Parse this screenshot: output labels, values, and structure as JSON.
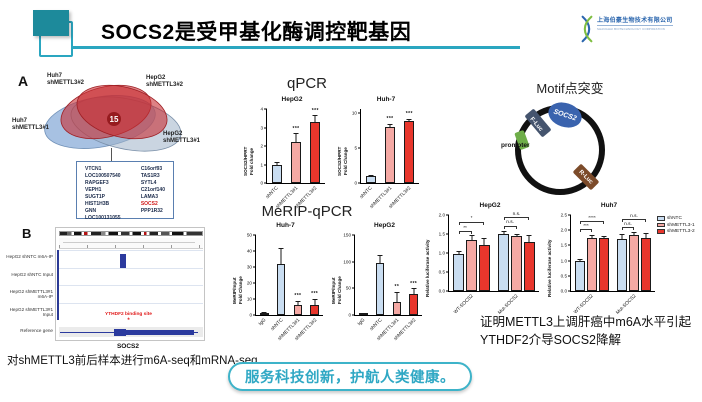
{
  "header": {
    "title": "SOCS2是受甲基化酶调控靶基因",
    "logo": {
      "cn": "上海伯豪生物技术有限公司",
      "en": "SHANGHAI BIOTECHNOLOGY CORPORATION"
    }
  },
  "panelA": {
    "label": "A",
    "venn": {
      "center_count": "15",
      "sets": [
        "Huh7\nshMETTL3#2",
        "HepG2\nshMETTL3#2",
        "Huh7\nshMETTL3#1",
        "HepG2\nshMETTL3#1"
      ]
    },
    "genes": {
      "col1": [
        "VTCN1",
        "LOC100507540",
        "RAPGEF3",
        "VEPH1",
        "SUGT1P",
        "HIST1H3B",
        "GNN",
        "LOC100131055"
      ],
      "col2": [
        "C16orf93",
        "TAS1R3",
        "SYTL4",
        "C21orf140",
        "LAMA3",
        "SOCS2",
        "PPP1R32"
      ],
      "highlight": "SOCS2"
    }
  },
  "panelB": {
    "label": "B",
    "tracks": [
      "HepG2 shNTC m6A-IP",
      "HepG2 shNTC Input",
      "HepG2 shMETTL3#1 m6A-IP",
      "HepG2 shMETTL3#1 Input",
      "Reference gene"
    ],
    "annotation": "YTHDF2 binding site",
    "annotation_mark": "*",
    "gene_label": "SOCS2"
  },
  "sections": {
    "qpcr": "qPCR",
    "merip": "MeRIP-qPCR",
    "motif": "Motif点突变"
  },
  "plasmid": {
    "insert": "SOCS2",
    "fluc": "F-Luc",
    "promoter": "promoter",
    "rluc": "R-Luc"
  },
  "legend": [
    {
      "label": "shNTC",
      "color": "blue"
    },
    {
      "label": "shMETTL3-1",
      "color": "pink"
    },
    {
      "label": "shMETTL3-2",
      "color": "red"
    }
  ],
  "conclusion": "证明METTL3上调肝癌中m6A水平引起YTHDF2介导SOCS2降解",
  "bottom_left_note": "对shMETTL3前后样本进行m6A-seq和mRNA-seq",
  "slogan": "服务科技创新，护航人类健康。",
  "palette": {
    "blue": "#C9DDF1",
    "pink": "#F5A9A4",
    "red": "#E8362C",
    "dark": "#1b1b2e",
    "teal": "#2AA6C0",
    "tealDark": "#1D8A9B"
  },
  "chart_data": [
    {
      "id": "qpcr_hepg2",
      "type": "bar",
      "title": "HepG2",
      "ylabel": "SOCS2/HPRT\nFold change",
      "ymax": 4,
      "yticks": [
        0,
        1,
        2,
        3,
        4
      ],
      "bars": [
        {
          "label": "shNTC",
          "value": 1.0,
          "err": 0.15,
          "color": "blue",
          "sig": ""
        },
        {
          "label": "shMETTL3#1",
          "value": 2.2,
          "err": 0.5,
          "color": "pink",
          "sig": "***"
        },
        {
          "label": "shMETTL3#2",
          "value": 3.3,
          "err": 0.35,
          "color": "red",
          "sig": "***"
        }
      ]
    },
    {
      "id": "qpcr_huh7",
      "type": "bar",
      "title": "Huh-7",
      "ylabel": "SOCS2/HPRT\nFold Change",
      "ymax": 10.5,
      "yticks": [
        0,
        5,
        10
      ],
      "bars": [
        {
          "label": "shNTC",
          "value": 1.0,
          "err": 0.1,
          "color": "blue",
          "sig": ""
        },
        {
          "label": "shMETTL3#1",
          "value": 8.0,
          "err": 0.4,
          "color": "pink",
          "sig": "***"
        },
        {
          "label": "shMETTL3#2",
          "value": 8.8,
          "err": 0.35,
          "color": "red",
          "sig": "***"
        }
      ]
    },
    {
      "id": "merip_huh7",
      "type": "bar",
      "title": "Huh-7",
      "ylabel": "MeRIP/Input\nFold Change",
      "ymax": 50,
      "yticks": [
        0,
        10,
        20,
        30,
        40,
        50
      ],
      "bars": [
        {
          "label": "IgG",
          "value": 1.2,
          "err": 0.4,
          "color": "dark",
          "sig": ""
        },
        {
          "label": "shNTC",
          "value": 32,
          "err": 10,
          "color": "blue",
          "sig": ""
        },
        {
          "label": "shMETTL3#1",
          "value": 6,
          "err": 3,
          "color": "pink",
          "sig": "***"
        },
        {
          "label": "shMETTL3#2",
          "value": 6,
          "err": 4,
          "color": "red",
          "sig": "***"
        }
      ]
    },
    {
      "id": "merip_hepg2",
      "type": "bar",
      "title": "HepG2",
      "ylabel": "MeRIP/Input\nFold Change",
      "ymax": 150,
      "yticks": [
        0,
        50,
        100,
        150
      ],
      "bars": [
        {
          "label": "IgG",
          "value": 3,
          "err": 1,
          "color": "dark",
          "sig": ""
        },
        {
          "label": "shNTC",
          "value": 98,
          "err": 15,
          "color": "blue",
          "sig": ""
        },
        {
          "label": "shMETTL3#1",
          "value": 25,
          "err": 18,
          "color": "pink",
          "sig": "**"
        },
        {
          "label": "shMETTL3#2",
          "value": 40,
          "err": 10,
          "color": "red",
          "sig": "***"
        }
      ]
    },
    {
      "id": "luc_hepg2",
      "type": "grouped-bar",
      "title": "HepG2",
      "ylabel": "Relative luciferase activity",
      "ymax": 2.0,
      "yticks": [
        0,
        0.5,
        1,
        1.5,
        2
      ],
      "decimals": 1,
      "series": [
        "shNTC",
        "shMETTL3-1",
        "shMETTL3-2"
      ],
      "series_colors": [
        "blue",
        "pink",
        "red"
      ],
      "groups": [
        {
          "label": "WT-SOCS2",
          "values": [
            0.97,
            1.35,
            1.22
          ],
          "errs": [
            0.08,
            0.12,
            0.18
          ]
        },
        {
          "label": "Mut-SOCS2",
          "values": [
            1.5,
            1.45,
            1.3
          ],
          "errs": [
            0.07,
            0.06,
            0.18
          ]
        }
      ],
      "brackets": [
        {
          "g": 0,
          "from": 0,
          "to": 1,
          "y": 1.55,
          "text": "**"
        },
        {
          "g": 0,
          "from": 0,
          "to": 2,
          "y": 1.8,
          "text": "*"
        },
        {
          "g": 1,
          "from": 0,
          "to": 1,
          "y": 1.7,
          "text": "n.s."
        },
        {
          "g": 1,
          "from": 0,
          "to": 2,
          "y": 1.92,
          "text": "n.s."
        }
      ]
    },
    {
      "id": "luc_huh7",
      "type": "grouped-bar",
      "title": "Huh7",
      "ylabel": "Relative luciferase activity",
      "ymax": 2.5,
      "yticks": [
        0,
        0.5,
        1,
        1.5,
        2,
        2.5
      ],
      "decimals": 1,
      "series": [
        "shNTC",
        "shMETTL3-1",
        "shMETTL3-2"
      ],
      "series_colors": [
        "blue",
        "pink",
        "red"
      ],
      "groups": [
        {
          "label": "WT-SOCS2",
          "values": [
            1.0,
            1.75,
            1.75
          ],
          "errs": [
            0.05,
            0.1,
            0.07
          ]
        },
        {
          "label": "Mut-SOCS2",
          "values": [
            1.7,
            1.85,
            1.75
          ],
          "errs": [
            0.18,
            0.08,
            0.15
          ]
        }
      ],
      "brackets": [
        {
          "g": 0,
          "from": 0,
          "to": 1,
          "y": 2.0,
          "text": "***"
        },
        {
          "g": 0,
          "from": 0,
          "to": 2,
          "y": 2.27,
          "text": "****"
        },
        {
          "g": 1,
          "from": 0,
          "to": 1,
          "y": 2.07,
          "text": "n.s."
        },
        {
          "g": 1,
          "from": 0,
          "to": 2,
          "y": 2.33,
          "text": "n.s."
        }
      ]
    }
  ]
}
